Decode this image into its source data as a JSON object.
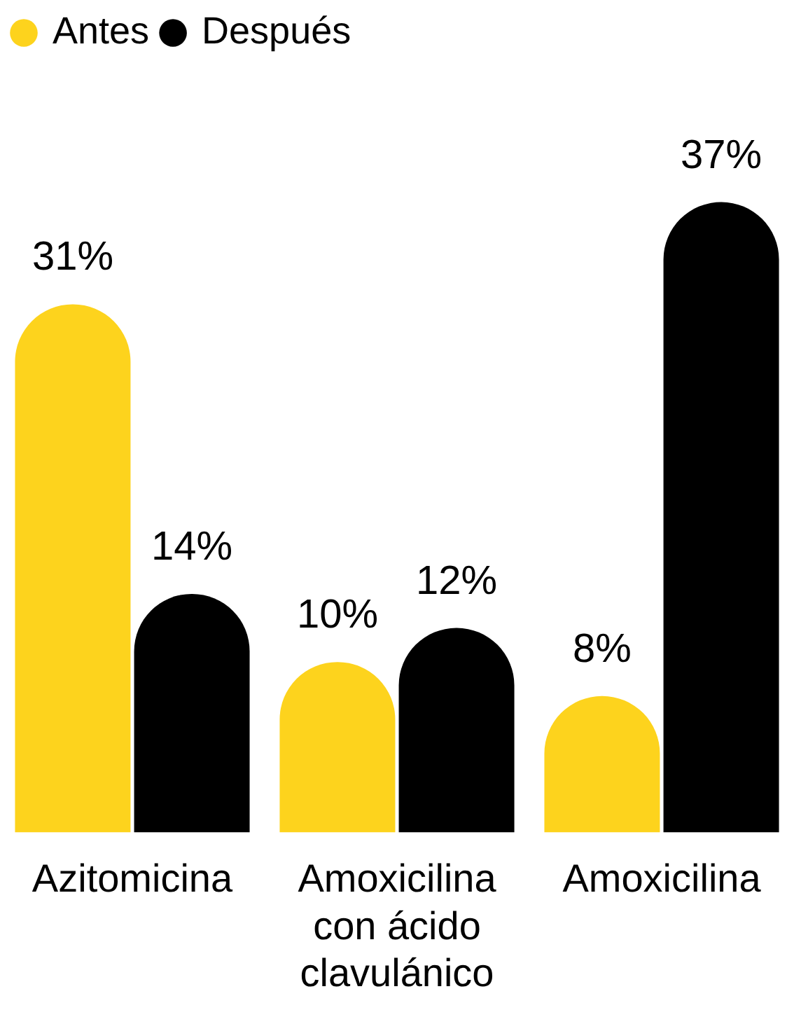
{
  "chart_data": {
    "type": "bar",
    "categories": [
      "Azitomicina",
      "Amoxicilina con ácido clavulánico",
      "Amoxicilina"
    ],
    "legend": "top left",
    "grid": false,
    "series": [
      {
        "name": "Antes",
        "color": "#fdd31d",
        "values": [
          31,
          10,
          8
        ],
        "value_labels": [
          "31%",
          "10%",
          "8%"
        ]
      },
      {
        "name": "Después",
        "color": "#000000",
        "values": [
          14,
          12,
          37
        ],
        "value_labels": [
          "14%",
          "12%",
          "37%"
        ]
      }
    ]
  }
}
